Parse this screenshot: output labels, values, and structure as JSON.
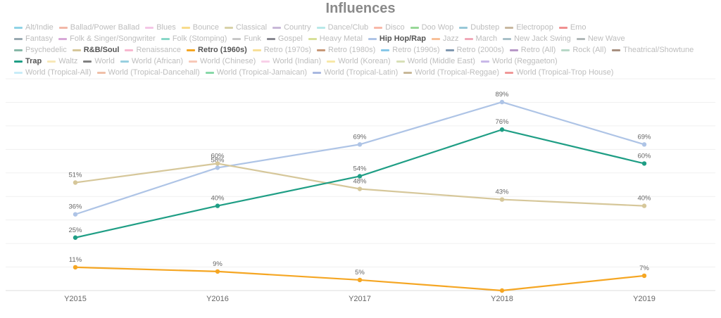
{
  "chart_data": {
    "type": "line",
    "title": "Influences",
    "xlabel": "",
    "ylabel": "",
    "categories": [
      "Y2015",
      "Y2016",
      "Y2017",
      "Y2018",
      "Y2019"
    ],
    "ylim": [
      0,
      100
    ],
    "grid": true,
    "legend_position": "top",
    "legend": [
      {
        "name": "Alt/Indie",
        "color": "#8fd3e6",
        "active": false
      },
      {
        "name": "Ballad/Power Ballad",
        "color": "#f2b8a8",
        "active": false
      },
      {
        "name": "Blues",
        "color": "#f4c6e6",
        "active": false
      },
      {
        "name": "Bounce",
        "color": "#f8dc8c",
        "active": false
      },
      {
        "name": "Classical",
        "color": "#d8d2a8",
        "active": false
      },
      {
        "name": "Country",
        "color": "#c8b8d8",
        "active": false
      },
      {
        "name": "Dance/Club",
        "color": "#b8e8e8",
        "active": false
      },
      {
        "name": "Disco",
        "color": "#f8b8a8",
        "active": false
      },
      {
        "name": "Doo Wop",
        "color": "#98d898",
        "active": false
      },
      {
        "name": "Dubstep",
        "color": "#98c8d8",
        "active": false
      },
      {
        "name": "Electropop",
        "color": "#c8b8a0",
        "active": false
      },
      {
        "name": "Emo",
        "color": "#f09090",
        "active": false
      },
      {
        "name": "Fantasy",
        "color": "#98a8b0",
        "active": false
      },
      {
        "name": "Folk & Singer/Songwriter",
        "color": "#d8a8d8",
        "active": false
      },
      {
        "name": "Folk (Stomping)",
        "color": "#88d8c8",
        "active": false
      },
      {
        "name": "Funk",
        "color": "#c8c8c8",
        "active": false
      },
      {
        "name": "Gospel",
        "color": "#888890",
        "active": false
      },
      {
        "name": "Heavy Metal",
        "color": "#d8e098",
        "active": false
      },
      {
        "name": "Hip Hop/Rap",
        "color": "#aec4e6",
        "active": true
      },
      {
        "name": "Jazz",
        "color": "#f8c098",
        "active": false
      },
      {
        "name": "March",
        "color": "#f0a8b8",
        "active": false
      },
      {
        "name": "New Jack Swing",
        "color": "#a8c0c8",
        "active": false
      },
      {
        "name": "New Wave",
        "color": "#b0b8b8",
        "active": false
      },
      {
        "name": "Psychedelic",
        "color": "#88b8a8",
        "active": false
      },
      {
        "name": "R&B/Soul",
        "color": "#d6c79a",
        "active": true
      },
      {
        "name": "Renaissance",
        "color": "#f8b8d0",
        "active": false
      },
      {
        "name": "Retro (1960s)",
        "color": "#f5a623",
        "active": true
      },
      {
        "name": "Retro (1970s)",
        "color": "#f8e098",
        "active": false
      },
      {
        "name": "Retro (1980s)",
        "color": "#c89878",
        "active": false
      },
      {
        "name": "Retro (1990s)",
        "color": "#88c8e8",
        "active": false
      },
      {
        "name": "Retro (2000s)",
        "color": "#8098b0",
        "active": false
      },
      {
        "name": "Retro (All)",
        "color": "#b898c8",
        "active": false
      },
      {
        "name": "Rock (All)",
        "color": "#b8d8c8",
        "active": false
      },
      {
        "name": "Theatrical/Showtune",
        "color": "#a89080",
        "active": false
      },
      {
        "name": "Trap",
        "color": "#1f9e85",
        "active": true
      },
      {
        "name": "Waltz",
        "color": "#f8e8b8",
        "active": false
      },
      {
        "name": "World",
        "color": "#808080",
        "active": false
      },
      {
        "name": "World (African)",
        "color": "#98d0e0",
        "active": false
      },
      {
        "name": "World (Chinese)",
        "color": "#f8c8b8",
        "active": false
      },
      {
        "name": "World (Indian)",
        "color": "#f8d0e8",
        "active": false
      },
      {
        "name": "World (Korean)",
        "color": "#f8e8a8",
        "active": false
      },
      {
        "name": "World (Middle East)",
        "color": "#d8e0b8",
        "active": false
      },
      {
        "name": "World (Reggaeton)",
        "color": "#c8b8e8",
        "active": false
      },
      {
        "name": "World (Tropical-All)",
        "color": "#c8ecf8",
        "active": false
      },
      {
        "name": "World (Tropical-Dancehall)",
        "color": "#f0c0a8",
        "active": false
      },
      {
        "name": "World (Tropical-Jamaican)",
        "color": "#88d8a8",
        "active": false
      },
      {
        "name": "World (Tropical-Latin)",
        "color": "#a8b8e0",
        "active": false
      },
      {
        "name": "World (Tropical-Reggae)",
        "color": "#c8b898",
        "active": false
      },
      {
        "name": "World (Tropical-Trop House)",
        "color": "#f09898",
        "active": false
      }
    ],
    "legend_rows": [
      12,
      11,
      11,
      9,
      6
    ],
    "series": [
      {
        "name": "Hip Hop/Rap",
        "color": "#aec4e6",
        "values": [
          36,
          58,
          69,
          89,
          69
        ],
        "labels": [
          "36%",
          "58%",
          "69%",
          "89%",
          "69%"
        ]
      },
      {
        "name": "R&B/Soul",
        "color": "#d6c79a",
        "values": [
          51,
          60,
          48,
          43,
          40
        ],
        "labels": [
          "51%",
          "60%",
          "48%",
          "43%",
          "40%"
        ]
      },
      {
        "name": "Trap",
        "color": "#1f9e85",
        "values": [
          25,
          40,
          54,
          76,
          60
        ],
        "labels": [
          "25%",
          "40%",
          "54%",
          "76%",
          "60%"
        ]
      },
      {
        "name": "Retro (1960s)",
        "color": "#f5a623",
        "values": [
          11,
          9,
          5,
          0,
          7
        ],
        "labels": [
          "11%",
          "9%",
          "5%",
          "",
          "7%"
        ]
      }
    ]
  }
}
